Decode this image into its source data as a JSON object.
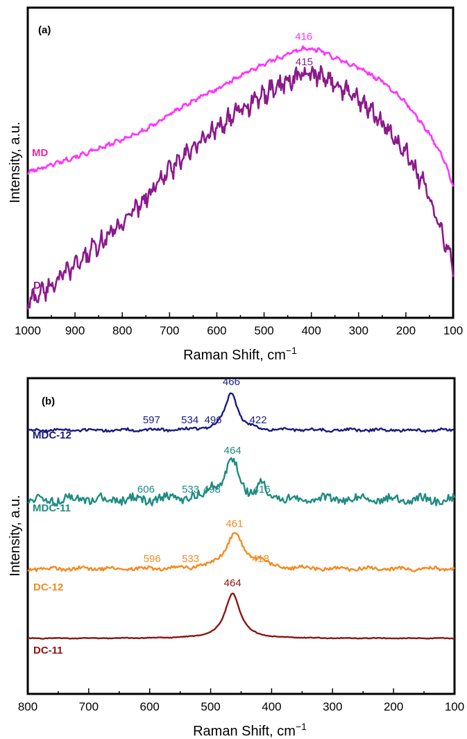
{
  "chart_data": [
    {
      "type": "line",
      "panel_label": "(a)",
      "xlabel": "Raman Shift, cm",
      "xlabel_sup": "−1",
      "ylabel": "Intensity, a.u.",
      "xlim": [
        1000,
        100
      ],
      "x_reversed": true,
      "xticks": [
        "1000",
        "900",
        "800",
        "700",
        "600",
        "500",
        "400",
        "300",
        "200",
        "100"
      ],
      "yticks": false,
      "grid": false,
      "series": [
        {
          "name": "MD",
          "color": "#ff33ff",
          "label_color": "#ee2a9e",
          "points": [
            [
              1000,
              0.7
            ],
            [
              950,
              0.74
            ],
            [
              900,
              0.78
            ],
            [
              850,
              0.82
            ],
            [
              800,
              0.87
            ],
            [
              750,
              0.92
            ],
            [
              700,
              1.0
            ],
            [
              650,
              1.07
            ],
            [
              600,
              1.13
            ],
            [
              550,
              1.2
            ],
            [
              500,
              1.26
            ],
            [
              450,
              1.31
            ],
            [
              416,
              1.34
            ],
            [
              380,
              1.33
            ],
            [
              350,
              1.29
            ],
            [
              300,
              1.24
            ],
            [
              250,
              1.17
            ],
            [
              200,
              1.06
            ],
            [
              150,
              0.9
            ],
            [
              120,
              0.77
            ],
            [
              100,
              0.63
            ]
          ],
          "peaks": [
            {
              "x": 416,
              "label": "416"
            }
          ]
        },
        {
          "name": "D",
          "color": "#8b1a8b",
          "label_color": "#8b1a8b",
          "points": [
            [
              1000,
              0.03
            ],
            [
              950,
              0.12
            ],
            [
              900,
              0.22
            ],
            [
              850,
              0.33
            ],
            [
              800,
              0.44
            ],
            [
              750,
              0.57
            ],
            [
              700,
              0.71
            ],
            [
              650,
              0.82
            ],
            [
              600,
              0.93
            ],
            [
              550,
              1.02
            ],
            [
              500,
              1.1
            ],
            [
              450,
              1.17
            ],
            [
              415,
              1.21
            ],
            [
              380,
              1.19
            ],
            [
              350,
              1.16
            ],
            [
              300,
              1.08
            ],
            [
              250,
              0.95
            ],
            [
              200,
              0.8
            ],
            [
              150,
              0.58
            ],
            [
              120,
              0.37
            ],
            [
              100,
              0.22
            ]
          ],
          "peaks": [
            {
              "x": 415,
              "label": "415"
            }
          ]
        }
      ]
    },
    {
      "type": "line",
      "panel_label": "(b)",
      "xlabel": "Raman Shift, cm",
      "xlabel_sup": "−1",
      "ylabel": "Intensity, a.u.",
      "xlim": [
        800,
        100
      ],
      "x_reversed": true,
      "xticks": [
        "800",
        "700",
        "600",
        "500",
        "400",
        "300",
        "200",
        "100"
      ],
      "yticks": false,
      "grid": false,
      "series": [
        {
          "name": "MDC-12",
          "color": "#1a1a80",
          "label_color": "#1a1a80",
          "baseline": 3.0,
          "peak_components": [
            {
              "x": 466,
              "height": 0.55,
              "width": 12
            }
          ],
          "noise": 0.02,
          "peaks": [
            {
              "x": 597,
              "label": "597"
            },
            {
              "x": 534,
              "label": "534"
            },
            {
              "x": 496,
              "label": "496"
            },
            {
              "x": 466,
              "label": "466"
            },
            {
              "x": 422,
              "label": "422"
            }
          ]
        },
        {
          "name": "MDC-11",
          "color": "#1e8c82",
          "label_color": "#1e8c82",
          "baseline": 2.0,
          "peak_components": [
            {
              "x": 498,
              "height": 0.18,
              "width": 6
            },
            {
              "x": 464,
              "height": 0.55,
              "width": 14
            },
            {
              "x": 416,
              "height": 0.2,
              "width": 6
            }
          ],
          "noise": 0.06,
          "peaks": [
            {
              "x": 606,
              "label": "606"
            },
            {
              "x": 533,
              "label": "533"
            },
            {
              "x": 498,
              "label": "498"
            },
            {
              "x": 464,
              "label": "464"
            },
            {
              "x": 416,
              "label": "416"
            }
          ]
        },
        {
          "name": "DC-12",
          "color": "#f58a1f",
          "label_color": "#f58a1f",
          "baseline": 1.0,
          "peak_components": [
            {
              "x": 461,
              "height": 0.5,
              "width": 18
            },
            {
              "x": 418,
              "height": 0.12,
              "width": 8
            }
          ],
          "noise": 0.025,
          "peaks": [
            {
              "x": 596,
              "label": "596"
            },
            {
              "x": 533,
              "label": "533"
            },
            {
              "x": 461,
              "label": "461"
            },
            {
              "x": 418,
              "label": "418"
            }
          ]
        },
        {
          "name": "DC-11",
          "color": "#8b1515",
          "label_color": "#8b1515",
          "baseline": 0.0,
          "peak_components": [
            {
              "x": 464,
              "height": 0.65,
              "width": 15
            }
          ],
          "noise": 0.005,
          "peaks": [
            {
              "x": 464,
              "label": "464"
            }
          ]
        }
      ]
    }
  ]
}
